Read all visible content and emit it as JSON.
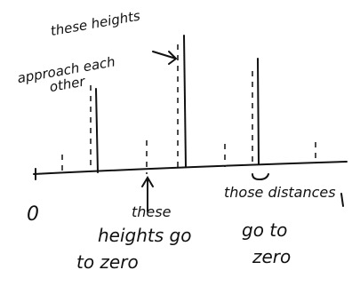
{
  "origin_label": "0",
  "notes": [
    {
      "lines": [
        "these heights",
        "approach each",
        "other"
      ]
    },
    {
      "lines": [
        "these",
        "heights go",
        "to zero"
      ]
    },
    {
      "lines": [
        "those distances",
        "go to",
        "zero"
      ]
    }
  ]
}
